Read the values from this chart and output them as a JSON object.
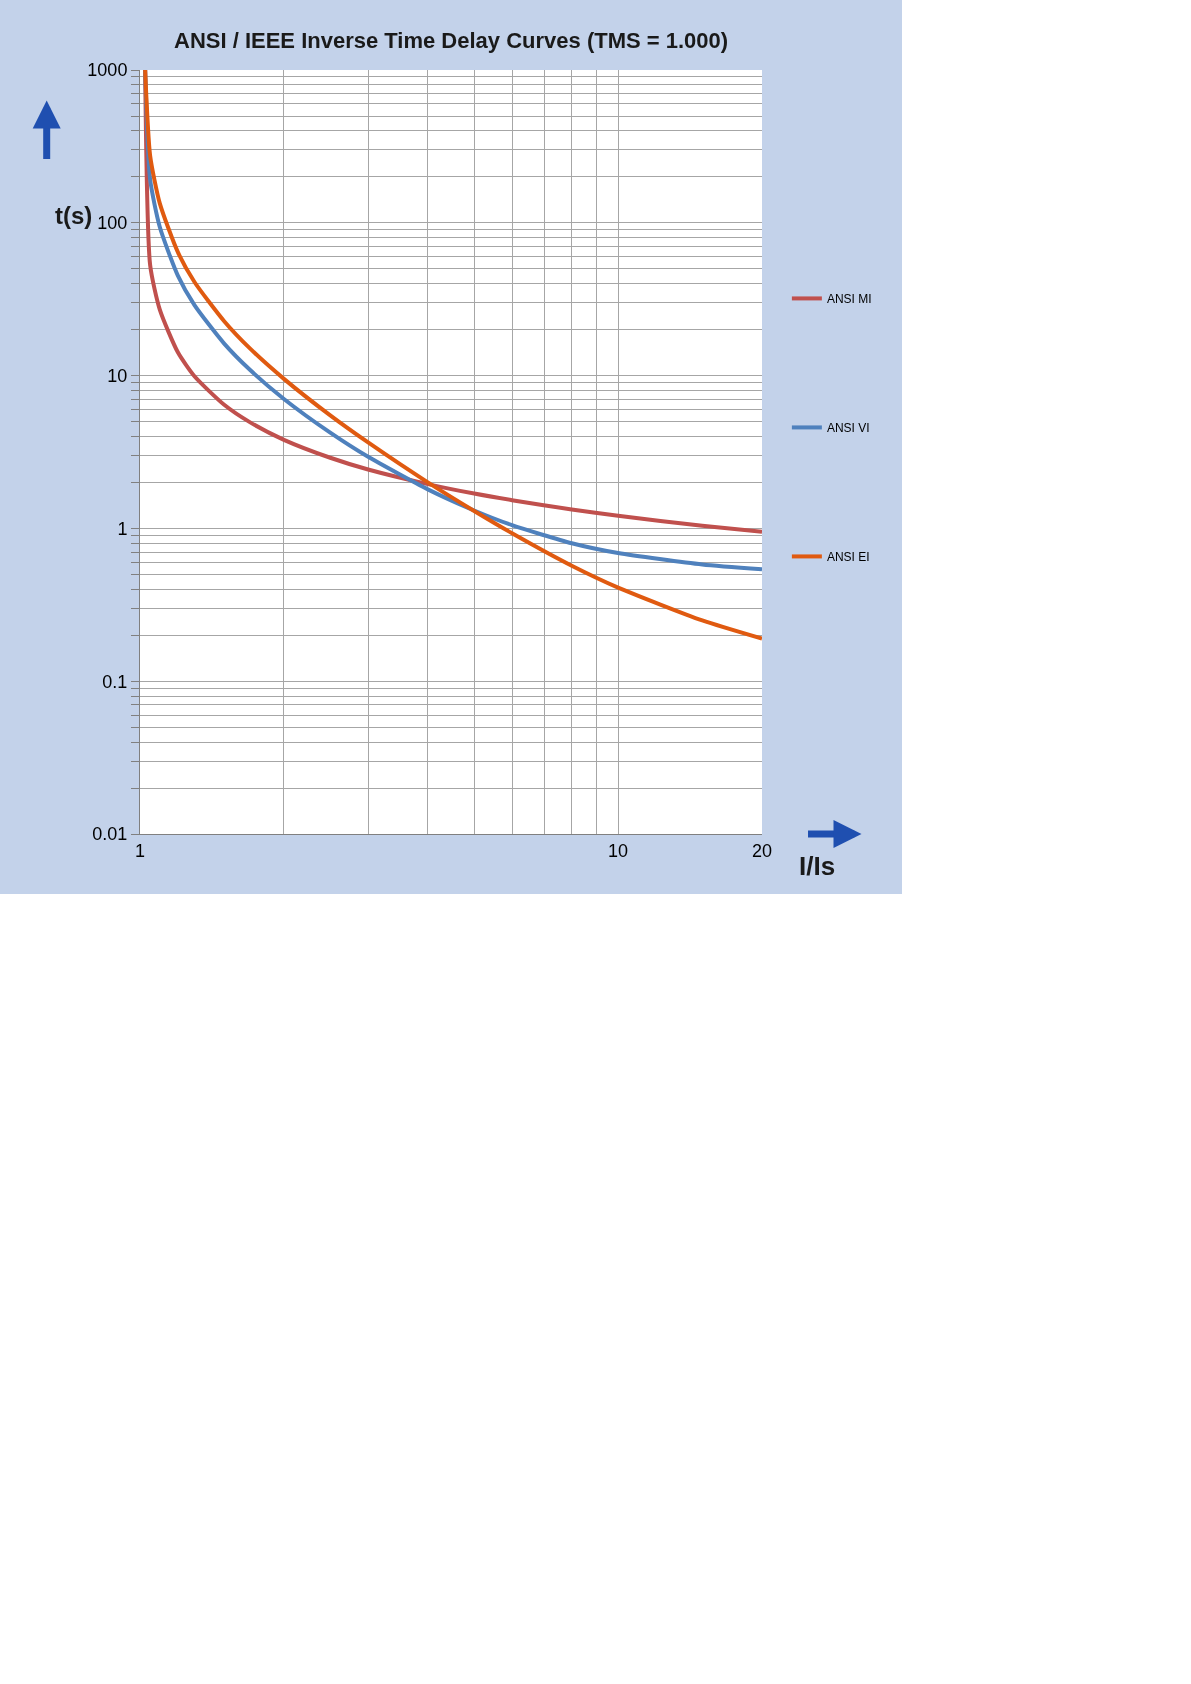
{
  "chart_data": {
    "type": "line",
    "title": "ANSI / IEEE Inverse Time Delay Curves (TMS = 1.000)",
    "xlabel": "I/Is",
    "ylabel": "t(s)",
    "log": "xy",
    "grid": true,
    "legend": "right",
    "marker": "none",
    "line_style": "solid",
    "xlim": [
      1,
      20
    ],
    "ylim": [
      0.01,
      1000
    ],
    "xticks": [
      1,
      {
        "value": 2,
        "label": null
      },
      {
        "value": 3,
        "label": null
      },
      {
        "value": 4,
        "label": null
      },
      {
        "value": 5,
        "label": null
      },
      {
        "value": 6,
        "label": null
      },
      {
        "value": 7,
        "label": null
      },
      {
        "value": 8,
        "label": null
      },
      {
        "value": 9,
        "label": null
      },
      10,
      20
    ],
    "yticks": [
      0.01,
      {
        "value": 0.02,
        "label": null
      },
      {
        "value": 0.03,
        "label": null
      },
      {
        "value": 0.04,
        "label": null
      },
      {
        "value": 0.05,
        "label": null
      },
      {
        "value": 0.06,
        "label": null
      },
      {
        "value": 0.07,
        "label": null
      },
      {
        "value": 0.08,
        "label": null
      },
      {
        "value": 0.09,
        "label": null
      },
      0.1,
      {
        "value": 0.2,
        "label": null
      },
      {
        "value": 0.3,
        "label": null
      },
      {
        "value": 0.4,
        "label": null
      },
      {
        "value": 0.5,
        "label": null
      },
      {
        "value": 0.6,
        "label": null
      },
      {
        "value": 0.7,
        "label": null
      },
      {
        "value": 0.8,
        "label": null
      },
      {
        "value": 0.9,
        "label": null
      },
      1,
      {
        "value": 2,
        "label": null
      },
      {
        "value": 3,
        "label": null
      },
      {
        "value": 4,
        "label": null
      },
      {
        "value": 5,
        "label": null
      },
      {
        "value": 6,
        "label": null
      },
      {
        "value": 7,
        "label": null
      },
      {
        "value": 8,
        "label": null
      },
      {
        "value": 9,
        "label": null
      },
      10,
      {
        "value": 20,
        "label": null
      },
      {
        "value": 30,
        "label": null
      },
      {
        "value": 40,
        "label": null
      },
      {
        "value": 50,
        "label": null
      },
      {
        "value": 60,
        "label": null
      },
      {
        "value": 70,
        "label": null
      },
      {
        "value": 80,
        "label": null
      },
      {
        "value": 90,
        "label": null
      },
      100,
      {
        "value": 200,
        "label": null
      },
      {
        "value": 300,
        "label": null
      },
      {
        "value": 400,
        "label": null
      },
      {
        "value": 500,
        "label": null
      },
      {
        "value": 600,
        "label": null
      },
      {
        "value": 700,
        "label": null
      },
      {
        "value": 800,
        "label": null
      },
      {
        "value": 900,
        "label": null
      },
      1000
    ],
    "x": [
      1.025,
      1.05,
      1.1,
      1.2,
      1.3,
      1.5,
      1.7,
      2,
      2.5,
      3,
      4,
      5,
      6,
      8,
      10,
      15,
      20
    ],
    "series": [
      {
        "name": "ANSI MI",
        "color": "#c0504d",
        "values": [
          1000,
          52.9,
          27,
          14.2,
          9.9,
          6.44,
          4.94,
          3.8,
          2.9,
          2.43,
          1.95,
          1.69,
          1.53,
          1.33,
          1.21,
          1.04,
          0.95
        ]
      },
      {
        "name": "ANSI VI",
        "color": "#4f81bd",
        "values": [
          1000,
          191.8,
          93.9,
          45.1,
          28.9,
          16.2,
          10.87,
          7.03,
          4.23,
          2.94,
          1.8,
          1.31,
          1.05,
          0.8,
          0.69,
          0.58,
          0.54
        ]
      },
      {
        "name": "ANSI EI",
        "color": "#e05a10",
        "values": [
          1000,
          275,
          134,
          64.2,
          41,
          22.7,
          15,
          9.52,
          5.49,
          3.65,
          2,
          1.3,
          0.93,
          0.57,
          0.41,
          0.25,
          0.19
        ]
      }
    ]
  }
}
